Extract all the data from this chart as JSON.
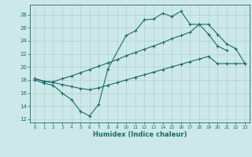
{
  "xlabel": "Humidex (Indice chaleur)",
  "bg_color": "#cde8e8",
  "grid_color": "#aed0d0",
  "line_color": "#1a6b6b",
  "xlim": [
    -0.5,
    23.5
  ],
  "ylim": [
    11.5,
    29.5
  ],
  "xticks": [
    0,
    1,
    2,
    3,
    4,
    5,
    6,
    7,
    8,
    9,
    10,
    11,
    12,
    13,
    14,
    15,
    16,
    17,
    18,
    19,
    20,
    21,
    22,
    23
  ],
  "yticks": [
    12,
    14,
    16,
    18,
    20,
    22,
    24,
    26,
    28
  ],
  "series1_x": [
    0,
    1,
    2,
    3,
    4,
    5,
    6,
    7,
    8,
    10,
    11,
    12,
    13,
    14,
    15,
    16,
    17,
    18,
    19,
    20,
    21
  ],
  "series1_y": [
    18.0,
    17.5,
    17.2,
    16.0,
    15.0,
    13.2,
    12.5,
    14.3,
    19.7,
    24.8,
    25.5,
    27.2,
    27.3,
    28.2,
    27.7,
    28.5,
    26.5,
    26.5,
    25.0,
    23.2,
    22.5
  ],
  "series2_x": [
    0,
    1,
    2,
    3,
    4,
    5,
    6,
    7,
    8,
    9,
    10,
    11,
    12,
    13,
    14,
    15,
    16,
    17,
    18,
    19,
    20,
    21,
    22,
    23
  ],
  "series2_y": [
    18.2,
    17.8,
    17.7,
    18.2,
    18.6,
    19.1,
    19.6,
    20.1,
    20.6,
    21.1,
    21.7,
    22.2,
    22.7,
    23.2,
    23.7,
    24.3,
    24.8,
    25.3,
    26.5,
    26.5,
    25.0,
    23.5,
    22.8,
    20.5
  ],
  "series3_x": [
    0,
    1,
    2,
    3,
    4,
    5,
    6,
    7,
    8,
    9,
    10,
    11,
    12,
    13,
    14,
    15,
    16,
    17,
    18,
    19,
    20,
    21,
    22,
    23
  ],
  "series3_y": [
    18.2,
    17.8,
    17.6,
    17.3,
    17.0,
    16.7,
    16.5,
    16.8,
    17.2,
    17.6,
    18.0,
    18.4,
    18.8,
    19.2,
    19.6,
    20.0,
    20.4,
    20.8,
    21.2,
    21.6,
    20.5,
    20.5,
    20.5,
    20.5
  ]
}
